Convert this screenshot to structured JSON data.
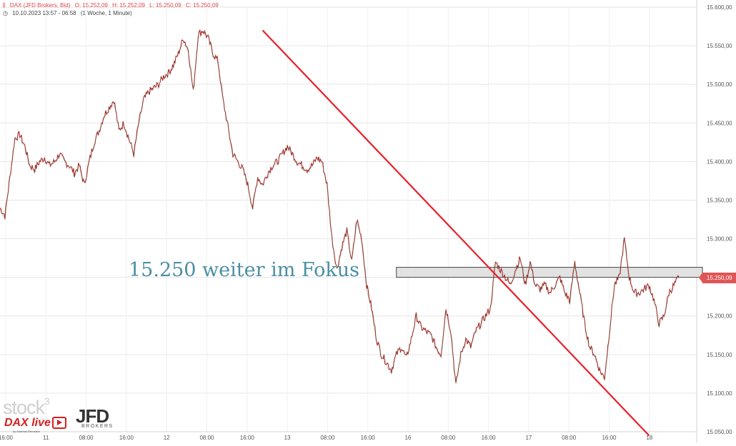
{
  "header": {
    "symbol": "DAX (JFD Brokers, Bid)",
    "open": "O: 15.252,09",
    "high": "H: 15.252,09",
    "low": "L: 15.250,09",
    "close": "C: 15.250,09",
    "range": "10.10.2023 13:57 - 06:58",
    "interval": "(1 Woche, 1 Minute)"
  },
  "annotation": "15.250 weiter im Fokus",
  "current_price_label": "15.250,09",
  "logos": {
    "stock3": "stock",
    "stock3_sup": "3",
    "daxlive": "DAX live",
    "daxlive_sub": "by Andreas Bernstein",
    "jfd": "JFD",
    "brokers": "BROKERS"
  },
  "colors": {
    "price_line": "#a52a2a",
    "trend_line": "#e8202a",
    "annotation": "#4a8fa3",
    "price_tag": "#e05556",
    "grid": "#e6e6e6"
  },
  "chart_data": {
    "type": "line",
    "title": "",
    "xlabel": "",
    "ylabel": "",
    "ylim": [
      15050,
      15600
    ],
    "y_ticks": [
      "15.600,00",
      "15.550,00",
      "15.500,00",
      "15.450,00",
      "15.400,00",
      "15.350,00",
      "15.300,00",
      "15.250,00",
      "15.200,00",
      "15.150,00",
      "15.100,00",
      "15.050,00"
    ],
    "y_tick_values": [
      15600,
      15550,
      15500,
      15450,
      15400,
      15350,
      15300,
      15250,
      15200,
      15150,
      15100,
      15050
    ],
    "x_ticks": [
      "16:00",
      "11",
      "08:00",
      "16:00",
      "12",
      "08:00",
      "16:00",
      "13",
      "08:00",
      "16:00",
      "16",
      "08:00",
      "16:00",
      "17",
      "08:00",
      "16:00",
      "18"
    ],
    "grid": true,
    "series": [
      {
        "values": [
          15340,
          15330,
          15380,
          15430,
          15435,
          15420,
          15395,
          15390,
          15400,
          15405,
          15395,
          15400,
          15410,
          15400,
          15395,
          15385,
          15395,
          15370,
          15400,
          15425,
          15440,
          15460,
          15470,
          15480,
          15440,
          15450,
          15430,
          15410,
          15450,
          15480,
          15490,
          15495,
          15500,
          15510,
          15515,
          15525,
          15540,
          15560,
          15545,
          15490,
          15565,
          15570,
          15560,
          15540,
          15530,
          15480,
          15445,
          15410,
          15400,
          15390,
          15370,
          15340,
          15380,
          15370,
          15385,
          15395,
          15400,
          15410,
          15420,
          15410,
          15400,
          15395,
          15390,
          15395,
          15405,
          15400,
          15370,
          15300,
          15260,
          15290,
          15310,
          15270,
          15325,
          15300,
          15240,
          15210,
          15170,
          15150,
          15140,
          15130,
          15150,
          15160,
          15145,
          15170,
          15200,
          15185,
          15180,
          15175,
          15160,
          15150,
          15210,
          15180,
          15110,
          15150,
          15170,
          15160,
          15180,
          15190,
          15200,
          15210,
          15270,
          15260,
          15250,
          15240,
          15260,
          15275,
          15240,
          15270,
          15240,
          15235,
          15240,
          15230,
          15240,
          15250,
          15230,
          15220,
          15270,
          15230,
          15190,
          15160,
          15150,
          15130,
          15120,
          15180,
          15240,
          15250,
          15300,
          15250,
          15230,
          15230,
          15235,
          15240,
          15220,
          15190,
          15200,
          15230,
          15240,
          15250
        ]
      }
    ],
    "annotations": [
      {
        "type": "trendline",
        "from": {
          "x": 53.0,
          "y": 15570
        },
        "to": {
          "x": 131.0,
          "y": 15045
        }
      },
      {
        "type": "zone",
        "x_from": 80.0,
        "x_to": 164.0,
        "y_from": 15250,
        "y_to": 15263
      },
      {
        "type": "label",
        "text": "15.250 weiter im Fokus"
      },
      {
        "type": "price_tag",
        "value": 15250.09
      }
    ]
  }
}
